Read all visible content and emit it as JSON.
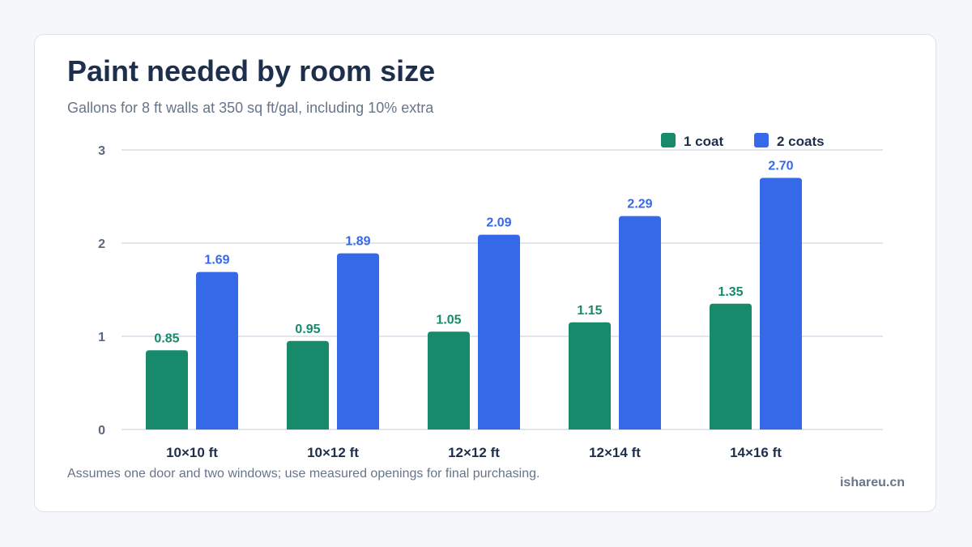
{
  "header": {
    "title": "Paint needed by room size",
    "subtitle": "Gallons for 8 ft walls at 350 sq ft/gal, including 10% extra"
  },
  "footer": {
    "note": "Assumes one door and two windows; use measured openings for final purchasing.",
    "brand": "ishareu.cn"
  },
  "colors": {
    "series1": "#178a6b",
    "series2": "#3669e8",
    "grid": "#d7dee8",
    "axis_text": "#5a6980",
    "category_text": "#1e2f4d"
  },
  "chart_data": {
    "type": "bar",
    "title": "Paint needed by room size",
    "subtitle": "Gallons for 8 ft walls at 350 sq ft/gal, including 10% extra",
    "xlabel": "",
    "ylabel": "",
    "categories": [
      "10×10 ft",
      "10×12 ft",
      "12×12 ft",
      "12×14 ft",
      "14×16 ft"
    ],
    "series": [
      {
        "name": "1 coat",
        "values": [
          0.85,
          0.95,
          1.05,
          1.15,
          1.35
        ],
        "labels": [
          "0.85",
          "0.95",
          "1.05",
          "1.15",
          "1.35"
        ]
      },
      {
        "name": "2 coats",
        "values": [
          1.69,
          1.89,
          2.09,
          2.29,
          2.7
        ],
        "labels": [
          "1.69",
          "1.89",
          "2.09",
          "2.29",
          "2.70"
        ]
      }
    ],
    "ylim": [
      0,
      3
    ],
    "yticks": [
      0,
      1,
      2,
      3
    ],
    "grid": true,
    "legend": "top-right"
  }
}
